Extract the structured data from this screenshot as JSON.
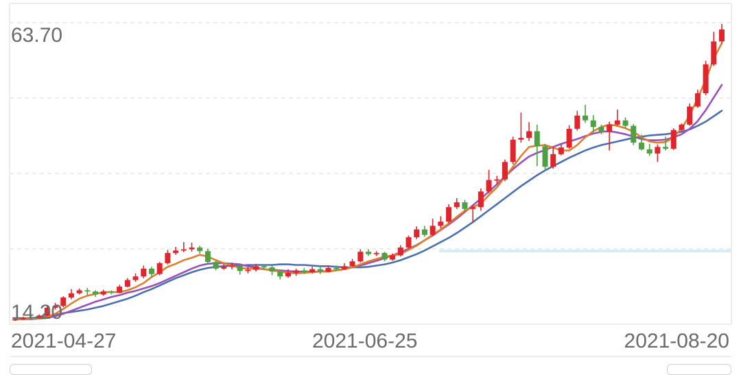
{
  "chart_data": {
    "type": "candlestick",
    "y_max_label": "63.70",
    "y_min_label": "14.20",
    "ylim": [
      14.2,
      63.7
    ],
    "x_labels": [
      "2021-04-27",
      "2021-06-25",
      "2021-08-20"
    ],
    "colors": {
      "up": "#e0262c",
      "down": "#4ea043",
      "ma5": "#e27d2b",
      "ma10": "#9b4fb8",
      "ma20": "#4a6fb0",
      "grid": "#e6e6e6",
      "ref_line": "#d6ebf7"
    },
    "reference_level": 26.0,
    "candles": [
      [
        14.6,
        14.7,
        14.4,
        14.8
      ],
      [
        14.7,
        15.0,
        14.6,
        15.1
      ],
      [
        15.0,
        14.9,
        14.7,
        15.2
      ],
      [
        14.9,
        15.3,
        14.8,
        15.5
      ],
      [
        15.3,
        16.6,
        15.2,
        17.0
      ],
      [
        16.6,
        16.9,
        16.3,
        17.4
      ],
      [
        16.9,
        18.3,
        16.7,
        18.5
      ],
      [
        18.3,
        19.0,
        18.0,
        19.7
      ],
      [
        19.0,
        19.5,
        18.8,
        19.8
      ],
      [
        19.5,
        19.3,
        18.7,
        19.9
      ],
      [
        19.3,
        18.8,
        18.4,
        19.5
      ],
      [
        18.8,
        19.3,
        18.6,
        19.6
      ],
      [
        19.3,
        19.1,
        18.8,
        19.5
      ],
      [
        19.1,
        20.1,
        19.0,
        20.4
      ],
      [
        20.1,
        21.2,
        20.0,
        21.5
      ],
      [
        21.2,
        21.8,
        20.9,
        22.3
      ],
      [
        21.8,
        23.1,
        21.5,
        23.6
      ],
      [
        23.1,
        22.2,
        21.6,
        23.4
      ],
      [
        22.2,
        24.0,
        22.0,
        24.2
      ],
      [
        24.0,
        25.7,
        23.8,
        26.2
      ],
      [
        25.7,
        26.1,
        25.4,
        26.7
      ],
      [
        26.1,
        26.3,
        25.8,
        27.5
      ],
      [
        26.3,
        26.6,
        25.9,
        27.4
      ],
      [
        26.6,
        26.0,
        25.6,
        26.9
      ],
      [
        26.0,
        24.2,
        23.9,
        26.4
      ],
      [
        24.2,
        23.1,
        22.8,
        24.5
      ],
      [
        23.1,
        23.4,
        22.9,
        23.9
      ],
      [
        23.4,
        23.6,
        23.0,
        24.1
      ],
      [
        23.6,
        22.7,
        22.1,
        23.9
      ],
      [
        22.7,
        22.9,
        22.3,
        23.4
      ],
      [
        22.9,
        23.5,
        22.6,
        23.9
      ],
      [
        23.5,
        23.3,
        22.9,
        23.7
      ],
      [
        23.3,
        22.6,
        22.0,
        23.6
      ],
      [
        22.6,
        21.8,
        21.3,
        22.9
      ],
      [
        21.8,
        22.4,
        21.6,
        23.0
      ],
      [
        22.4,
        22.8,
        21.9,
        23.1
      ],
      [
        22.8,
        22.5,
        22.2,
        23.2
      ],
      [
        22.5,
        23.0,
        22.3,
        23.4
      ],
      [
        23.0,
        22.6,
        22.2,
        23.5
      ],
      [
        22.6,
        23.2,
        22.5,
        23.6
      ],
      [
        23.2,
        23.0,
        22.7,
        23.6
      ],
      [
        23.0,
        23.5,
        22.9,
        24.0
      ],
      [
        23.5,
        24.3,
        23.4,
        24.7
      ],
      [
        24.3,
        25.9,
        24.1,
        26.3
      ],
      [
        25.9,
        25.5,
        25.2,
        26.3
      ],
      [
        25.5,
        25.7,
        25.2,
        26.0
      ],
      [
        25.7,
        24.6,
        24.3,
        25.9
      ],
      [
        24.6,
        25.3,
        24.4,
        25.6
      ],
      [
        25.3,
        26.6,
        25.1,
        27.0
      ],
      [
        26.6,
        28.3,
        26.4,
        28.6
      ],
      [
        28.3,
        29.6,
        28.0,
        30.1
      ],
      [
        29.6,
        28.7,
        28.4,
        30.2
      ],
      [
        28.7,
        30.2,
        28.5,
        31.4
      ],
      [
        30.2,
        30.9,
        29.8,
        31.8
      ],
      [
        30.9,
        33.3,
        30.6,
        33.8
      ],
      [
        33.3,
        34.1,
        33.0,
        34.8
      ],
      [
        34.1,
        33.0,
        32.6,
        34.5
      ],
      [
        33.0,
        33.3,
        30.7,
        33.6
      ],
      [
        33.3,
        35.9,
        32.7,
        36.4
      ],
      [
        35.9,
        37.8,
        35.6,
        39.5
      ],
      [
        37.8,
        37.9,
        37.2,
        38.5
      ],
      [
        37.9,
        40.8,
        37.6,
        41.2
      ],
      [
        40.8,
        44.5,
        40.4,
        45.0
      ],
      [
        44.5,
        44.8,
        44.0,
        49.0
      ],
      [
        44.8,
        45.9,
        44.3,
        47.4
      ],
      [
        45.9,
        43.4,
        40.1,
        47.0
      ],
      [
        43.4,
        40.0,
        39.6,
        43.8
      ],
      [
        40.0,
        42.1,
        39.7,
        43.4
      ],
      [
        42.1,
        43.2,
        41.9,
        43.7
      ],
      [
        43.2,
        46.3,
        43.0,
        46.9
      ],
      [
        46.3,
        48.5,
        46.0,
        49.3
      ],
      [
        48.5,
        47.7,
        47.3,
        50.3
      ],
      [
        47.7,
        46.6,
        45.7,
        48.6
      ],
      [
        46.6,
        45.8,
        45.4,
        47.0
      ],
      [
        45.8,
        47.0,
        42.7,
        47.5
      ],
      [
        47.0,
        47.7,
        46.8,
        49.5
      ],
      [
        47.7,
        46.8,
        46.4,
        48.2
      ],
      [
        46.8,
        44.0,
        43.6,
        47.1
      ],
      [
        44.0,
        42.9,
        42.7,
        45.3
      ],
      [
        42.9,
        42.2,
        41.8,
        43.8
      ],
      [
        42.2,
        43.3,
        40.8,
        43.7
      ],
      [
        43.3,
        43.0,
        42.7,
        45.0
      ],
      [
        43.0,
        46.1,
        42.8,
        46.4
      ],
      [
        46.1,
        47.0,
        45.8,
        47.2
      ],
      [
        47.0,
        50.0,
        46.8,
        50.5
      ],
      [
        50.0,
        52.2,
        49.8,
        52.8
      ],
      [
        52.2,
        57.0,
        51.9,
        57.6
      ],
      [
        57.0,
        60.8,
        56.7,
        62.4
      ],
      [
        60.8,
        62.8,
        60.4,
        63.7
      ]
    ],
    "ma5": [
      14.7,
      14.7,
      14.8,
      14.8,
      15.1,
      15.6,
      16.4,
      17.3,
      18.1,
      18.6,
      18.9,
      19.2,
      19.2,
      19.2,
      19.5,
      20.0,
      20.7,
      21.7,
      22.5,
      23.4,
      23.9,
      24.5,
      24.9,
      25.4,
      25.1,
      24.5,
      24.0,
      23.6,
      23.2,
      23.1,
      23.1,
      23.0,
      22.8,
      22.6,
      22.4,
      22.3,
      22.4,
      22.5,
      22.6,
      22.6,
      22.8,
      23.0,
      23.3,
      23.8,
      24.3,
      24.7,
      25.1,
      25.3,
      25.5,
      26.2,
      26.9,
      27.8,
      28.7,
      29.6,
      30.6,
      31.7,
      32.7,
      33.3,
      33.9,
      35.3,
      36.6,
      38.3,
      40.0,
      41.8,
      43.3,
      43.5,
      43.6,
      43.2,
      42.7,
      42.7,
      43.6,
      44.9,
      45.9,
      46.6,
      47.0,
      46.8,
      46.4,
      45.8,
      44.9,
      44.2,
      44.0,
      44.1,
      44.9,
      46.4,
      48.5,
      51.4,
      54.4,
      58.0,
      60.5
    ],
    "ma10": [
      14.7,
      14.7,
      14.7,
      14.8,
      14.9,
      15.2,
      15.6,
      16.1,
      16.6,
      17.1,
      17.6,
      18.0,
      18.4,
      18.7,
      19.1,
      19.4,
      19.8,
      20.2,
      20.7,
      21.3,
      21.9,
      22.5,
      23.1,
      23.6,
      23.9,
      24.0,
      24.0,
      23.9,
      23.8,
      23.5,
      23.3,
      23.0,
      22.9,
      22.8,
      22.7,
      22.6,
      22.6,
      22.6,
      22.6,
      22.7,
      22.8,
      23.0,
      23.3,
      23.6,
      24.0,
      24.4,
      24.8,
      25.3,
      25.8,
      26.4,
      27.0,
      27.8,
      28.6,
      29.5,
      30.4,
      31.4,
      32.5,
      33.6,
      34.7,
      35.9,
      37.1,
      38.4,
      39.6,
      40.7,
      41.7,
      42.3,
      42.8,
      43.3,
      43.8,
      44.2,
      44.6,
      45.1,
      45.5,
      45.8,
      45.9,
      45.7,
      45.4,
      45.0,
      44.6,
      44.4,
      44.4,
      44.5,
      44.9,
      45.4,
      46.3,
      47.6,
      49.4,
      51.5,
      53.6
    ],
    "ma20": [
      14.7,
      14.8,
      14.9,
      15.0,
      15.2,
      15.4,
      15.7,
      15.9,
      16.1,
      16.3,
      16.6,
      16.9,
      17.3,
      17.7,
      18.1,
      18.6,
      19.2,
      19.7,
      20.3,
      20.9,
      21.5,
      22.0,
      22.5,
      22.9,
      23.2,
      23.4,
      23.5,
      23.6,
      23.6,
      23.7,
      23.7,
      23.7,
      23.7,
      23.8,
      23.8,
      23.7,
      23.7,
      23.6,
      23.5,
      23.5,
      23.4,
      23.3,
      23.3,
      23.3,
      23.4,
      23.6,
      23.8,
      24.1,
      24.5,
      25.0,
      25.5,
      26.1,
      26.8,
      27.5,
      28.2,
      29.0,
      29.9,
      30.8,
      31.8,
      32.8,
      33.8,
      34.8,
      35.8,
      36.8,
      37.7,
      38.6,
      39.4,
      40.1,
      40.8,
      41.5,
      42.1,
      42.7,
      43.2,
      43.6,
      43.9,
      44.2,
      44.5,
      44.8,
      45.0,
      45.2,
      45.3,
      45.4,
      45.6,
      45.8,
      46.2,
      46.8,
      47.5,
      48.4,
      49.3
    ]
  }
}
